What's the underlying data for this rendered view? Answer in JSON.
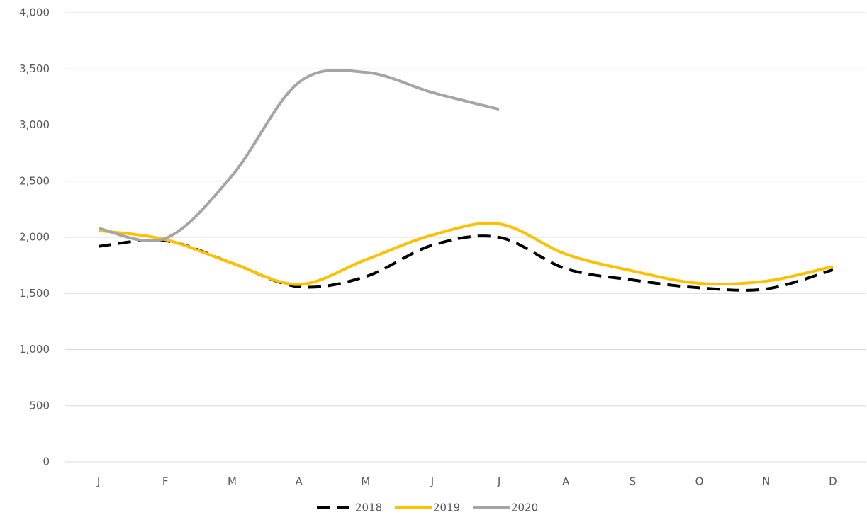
{
  "chart_data": {
    "type": "line",
    "categories": [
      "J",
      "F",
      "M",
      "A",
      "M",
      "J",
      "J",
      "A",
      "S",
      "O",
      "N",
      "D"
    ],
    "series": [
      {
        "name": "2018",
        "color": "#000000",
        "dash": "18,10",
        "values": [
          1920,
          1970,
          1770,
          1560,
          1650,
          1930,
          2000,
          1720,
          1620,
          1550,
          1540,
          1710
        ]
      },
      {
        "name": "2019",
        "color": "#ffc000",
        "values": [
          2060,
          1980,
          1770,
          1580,
          1800,
          2020,
          2120,
          1850,
          1700,
          1590,
          1610,
          1740
        ]
      },
      {
        "name": "2020",
        "color": "#a5a5a5",
        "values": [
          2080,
          1990,
          2550,
          3380,
          3470,
          3290,
          3140,
          null,
          null,
          null,
          null,
          null
        ]
      }
    ],
    "ylim": [
      0,
      4000
    ],
    "yticks": [
      0,
      500,
      {
        "value": 1000,
        "label": "1,000"
      },
      {
        "value": 1500,
        "label": "1,500"
      },
      {
        "value": 2000,
        "label": "2,000"
      },
      {
        "value": 2500,
        "label": "2,500"
      },
      {
        "value": 3000,
        "label": "3,000"
      },
      {
        "value": 3500,
        "label": "3,500"
      },
      {
        "value": 4000,
        "label": "4,000"
      }
    ],
    "grid": true,
    "smooth": true,
    "legend": "bottom"
  }
}
